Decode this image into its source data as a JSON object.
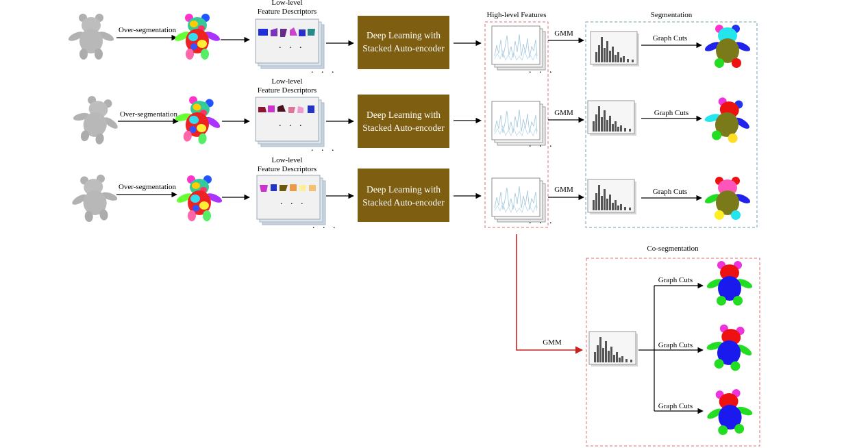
{
  "labels": {
    "over_segmentation": "Over-segmentation",
    "low_level_line1": "Low-level",
    "low_level_line2": "Feature Descriptors",
    "deep_line1": "Deep Learning with",
    "deep_line2": "Stacked Auto-encoder",
    "high_level": "High-level Features",
    "gmm": "GMM",
    "graph_cuts": "Graph Cuts",
    "segmentation": "Segmentation",
    "co_segmentation": "Co-segmentation",
    "ellipsis": ". . .",
    "ellipsis_small": ". . ."
  },
  "colors": {
    "deep_box": "#7e5e10",
    "red_arrow": "#cc1f1f",
    "high_level_frame": "#e06a6a",
    "segmentation_frame": "#6fa0b0",
    "coseg_frame": "#e06a6a",
    "mesh_gray": "#b4b4b4",
    "histogram_bar": "#555555",
    "feature_line": "#9fc4dc"
  },
  "icons": {
    "input_mesh": "teddy-bear-mesh-icon",
    "oversegmented_mesh": "patch-colored-bear-icon",
    "feature_stack": "feature-descriptor-stack-icon",
    "feature_plot": "line-plot-stack-icon",
    "histogram": "histogram-icon",
    "segmented_bear": "segmented-bear-icon"
  }
}
